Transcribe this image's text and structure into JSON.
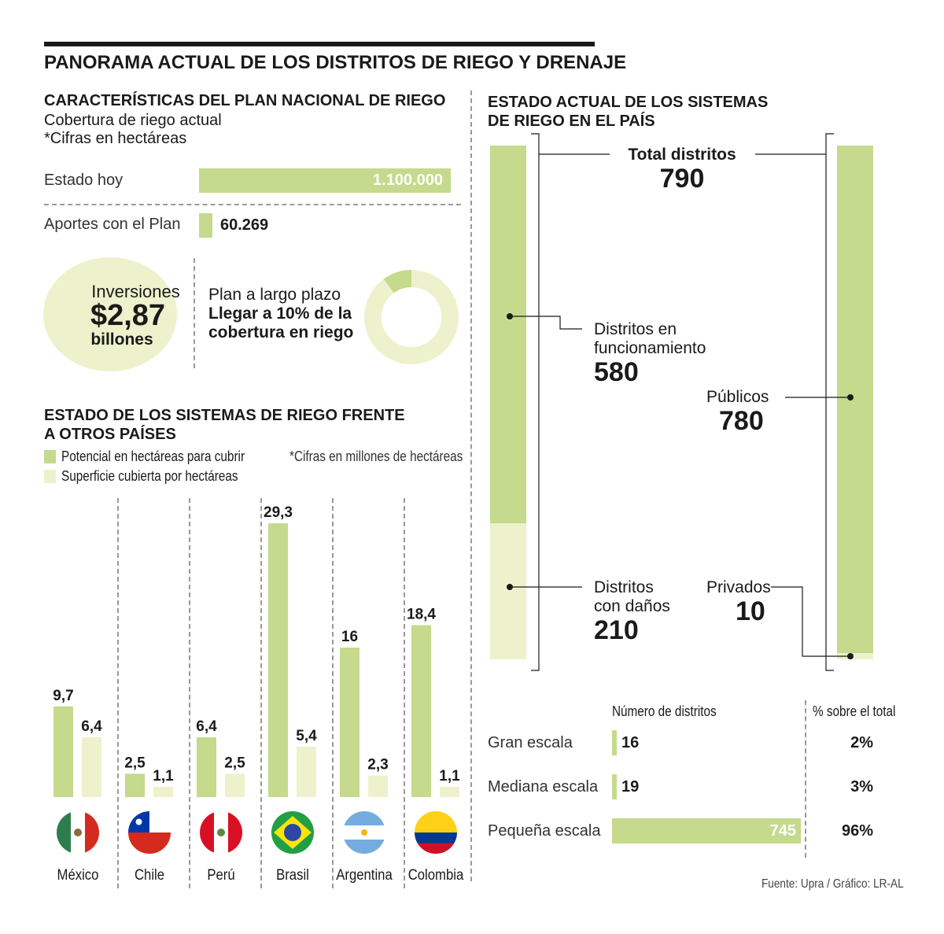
{
  "title": "PANORAMA ACTUAL DE LOS DISTRITOS DE RIEGO Y DRENAJE",
  "plan": {
    "title": "CARACTERÍSTICAS DEL PLAN NACIONAL DE RIEGO",
    "subtitle1": "Cobertura de riego actual",
    "subtitle2": "*Cifras en hectáreas",
    "estado_label": "Estado hoy",
    "estado_value": "1.100.000",
    "aportes_label": "Aportes con el Plan",
    "aportes_value": "60.269",
    "inversiones_label": "Inversiones",
    "inversiones_value": "$2,87",
    "inversiones_unit": "billones",
    "plazo_label": "Plan a largo plazo",
    "plazo_line1": "Llegar a 10% de la",
    "plazo_line2": "cobertura en riego",
    "plazo_fraction": 0.1
  },
  "countries": {
    "title1": "ESTADO DE LOS SISTEMAS DE RIEGO FRENTE",
    "title2": "A OTROS PAÍSES",
    "legend_potencial": "Potencial en hectáreas para cubrir",
    "legend_superficie": "Superficie cubierta por hectáreas",
    "note": "*Cifras en millones de hectáreas"
  },
  "systems": {
    "title1": "ESTADO ACTUAL DE LOS SISTEMAS",
    "title2": "DE RIEGO EN EL PAÍS",
    "total_label": "Total distritos",
    "total_value": "790",
    "func_label1": "Distritos en",
    "func_label2": "funcionamiento",
    "func_value": "580",
    "danos_label1": "Distritos",
    "danos_label2": "con daños",
    "danos_value": "210",
    "publicos_label": "Públicos",
    "publicos_value": "780",
    "privados_label": "Privados",
    "privados_value": "10"
  },
  "scale": {
    "header_num": "Número de distritos",
    "header_pct": "% sobre el total",
    "rows": [
      {
        "label": "Gran escala",
        "value": "16",
        "pct": "2%"
      },
      {
        "label": "Mediana escala",
        "value": "19",
        "pct": "3%"
      },
      {
        "label": "Pequeña escala",
        "value": "745",
        "pct": "96%"
      }
    ]
  },
  "source": "Fuente: Upra / Gráfico: LR-AL",
  "colors": {
    "potencial": "#c5da8c",
    "superficie": "#edf2cc"
  },
  "chart_data": [
    {
      "type": "bar",
      "categories": [
        "México",
        "Chile",
        "Perú",
        "Brasil",
        "Argentina",
        "Colombia"
      ],
      "series": [
        {
          "name": "Potencial en hectáreas para cubrir",
          "values": [
            9.7,
            2.5,
            6.4,
            29.3,
            16,
            18.4
          ],
          "labels": [
            "9,7",
            "2,5",
            "6,4",
            "29,3",
            "16",
            "18,4"
          ]
        },
        {
          "name": "Superficie cubierta por hectáreas",
          "values": [
            6.4,
            1.1,
            2.5,
            5.4,
            2.3,
            1.1
          ],
          "labels": [
            "6,4",
            "1,1",
            "2,5",
            "5,4",
            "2,3",
            "1,1"
          ]
        }
      ],
      "title": "ESTADO DE LOS SISTEMAS DE RIEGO FRENTE A OTROS PAÍSES",
      "ylim": [
        0,
        29.3
      ]
    },
    {
      "type": "bar",
      "categories": [
        "Gran escala",
        "Mediana escala",
        "Pequeña escala"
      ],
      "values": [
        16,
        19,
        745
      ],
      "title": "Número de distritos"
    }
  ]
}
